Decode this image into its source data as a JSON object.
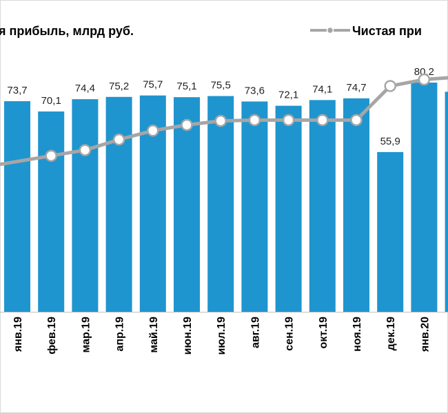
{
  "chart_data": {
    "type": "bar",
    "categories": [
      "янв.19",
      "фев.19",
      "мар.19",
      "апр.19",
      "май.19",
      "июн.19",
      "июл.19",
      "авг.19",
      "сен.19",
      "окт.19",
      "ноя.19",
      "дек.19",
      "янв.20",
      ""
    ],
    "series": [
      {
        "name": "я прибыль, млрд руб.",
        "type": "bar",
        "color": "#1f95cf",
        "values": [
          73.7,
          70.1,
          74.4,
          75.2,
          75.7,
          75.1,
          75.5,
          73.6,
          72.1,
          74.1,
          74.7,
          55.9,
          80.2,
          77.0
        ],
        "labels": [
          "73,7",
          "70,1",
          "74,4",
          "75,2",
          "75,7",
          "75,1",
          "75,5",
          "73,6",
          "72,1",
          "74,1",
          "74,7",
          "55,9",
          "80,2",
          ""
        ]
      },
      {
        "name": "Чистая при",
        "type": "line",
        "color": "#a6a6a6",
        "values": [
          null,
          1.5,
          2.2,
          3.5,
          4.6,
          5.3,
          5.8,
          5.9,
          5.9,
          5.9,
          5.9,
          10.1,
          10.9,
          11.2
        ]
      }
    ],
    "legend_position": "top",
    "grid": false
  }
}
